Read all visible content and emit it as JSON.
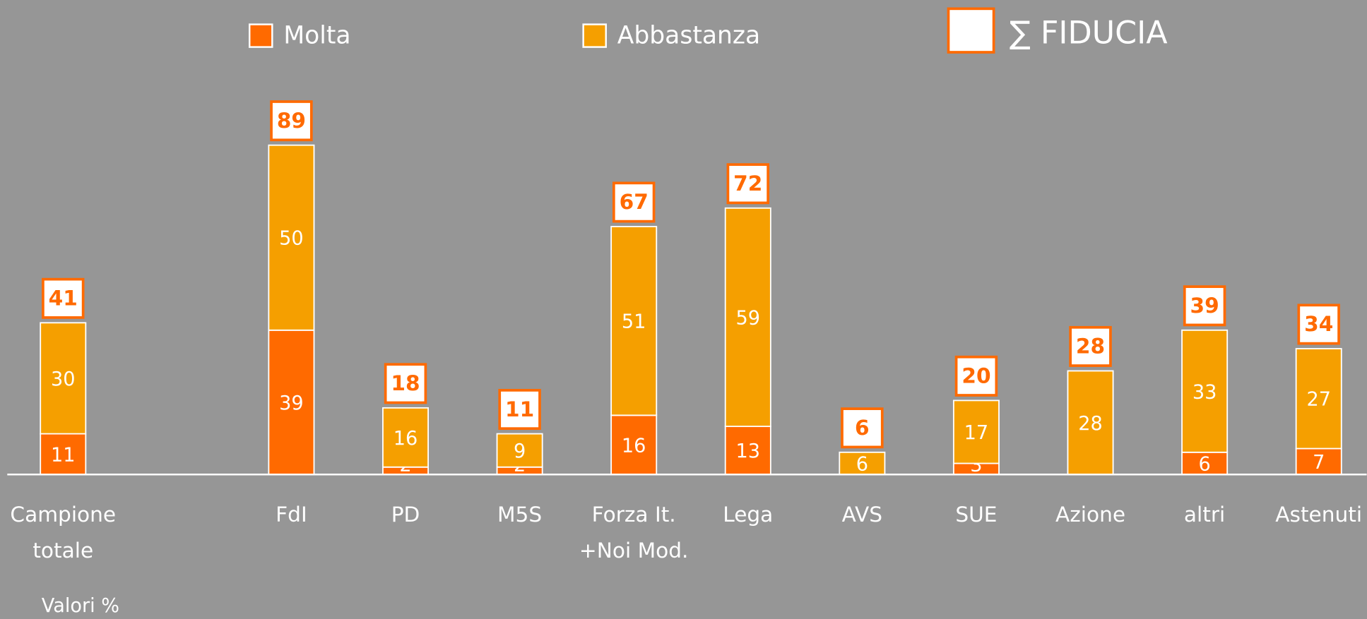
{
  "chart_data": {
    "type": "stacked-bar",
    "categories": [
      "Campione\ntotale",
      null,
      "FdI",
      "PD",
      "M5S",
      "Forza It.\n+Noi Mod.",
      "Lega",
      "AVS",
      "SUE",
      "Azione",
      "altri",
      "Astenuti"
    ],
    "series": [
      {
        "name": "Molta",
        "color": "#ff6a00",
        "values": [
          11,
          null,
          39,
          2,
          2,
          16,
          13,
          null,
          3,
          null,
          6,
          7
        ]
      },
      {
        "name": "Abbastanza",
        "color": "#f59f00",
        "values": [
          30,
          null,
          50,
          16,
          9,
          51,
          59,
          6,
          17,
          28,
          33,
          27
        ]
      }
    ],
    "totals": {
      "name": "∑ FIDUCIA",
      "color": "#ff6a00",
      "values": [
        41,
        null,
        89,
        18,
        11,
        67,
        72,
        6,
        20,
        28,
        39,
        34
      ]
    },
    "ylim": [
      0,
      100
    ],
    "note": "Valori %"
  }
}
